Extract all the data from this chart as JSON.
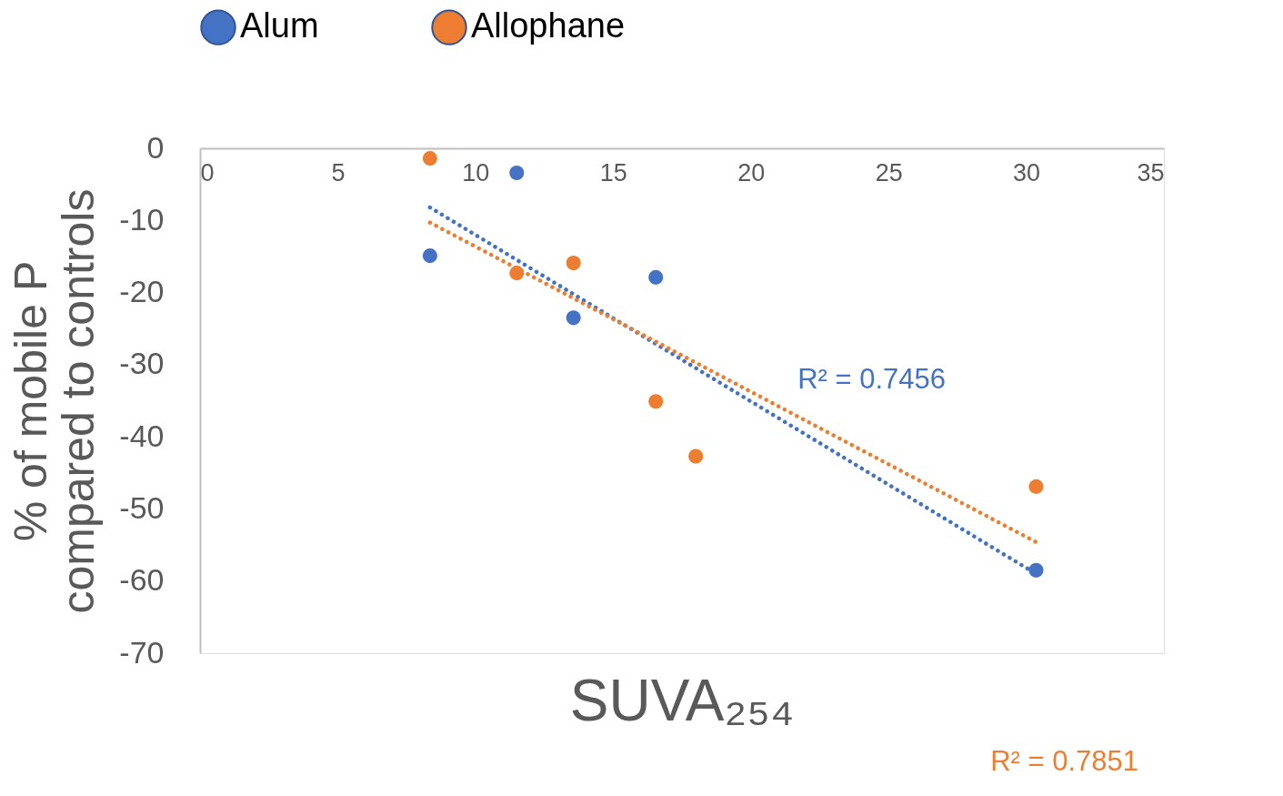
{
  "chart_data": {
    "type": "scatter",
    "xlabel": "SUVA₂₅₄",
    "ylabel": "% of mobile P\ncompared to controls",
    "xlim": [
      0,
      35
    ],
    "xticks": [
      0,
      5,
      10,
      15,
      20,
      25,
      30,
      35
    ],
    "ylim": [
      -70,
      0
    ],
    "yticks": [
      0,
      -10,
      -20,
      -30,
      -40,
      -50,
      -60,
      -70
    ],
    "grid": false,
    "legend": "top",
    "marker": "circle",
    "series": [
      {
        "name": "Alum",
        "color": "#4472c4",
        "x": [
          8.35,
          11.5,
          13.56,
          16.55,
          30.36
        ],
        "values": [
          -14.9,
          -3.4,
          -23.5,
          -17.9,
          -58.5
        ]
      },
      {
        "name": "Allophane",
        "color": "#ed7d31",
        "x": [
          8.35,
          11.5,
          13.56,
          16.55,
          18.0,
          30.36
        ],
        "values": [
          -1.4,
          -17.3,
          -15.9,
          -35.1,
          -42.7,
          -46.9
        ]
      },
      {
        "type": "line",
        "line_style": "dotted",
        "marker": "none",
        "color": "#4472c4",
        "x": [
          8.35,
          30.36
        ],
        "values": [
          -8.2,
          -59.0
        ]
      },
      {
        "type": "line",
        "line_style": "dotted",
        "marker": "none",
        "color": "#ed7d31",
        "x": [
          8.35,
          30.36
        ],
        "values": [
          -10.3,
          -54.6
        ]
      }
    ],
    "annotations": [
      "R² = 0.7456",
      "R² = 0.7851"
    ]
  }
}
